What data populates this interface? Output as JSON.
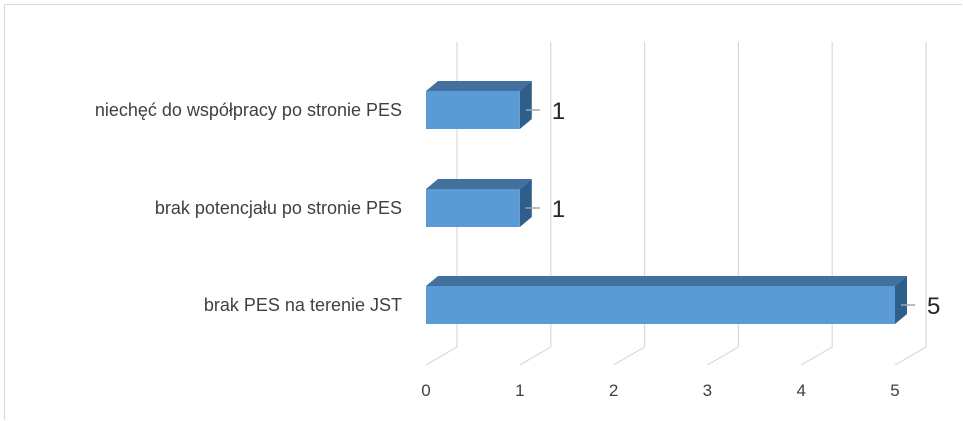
{
  "chart_data": {
    "type": "bar",
    "orientation": "horizontal",
    "style": "3d",
    "categories": [
      "niechęć do współpracy po stronie PES",
      "brak potencjału po stronie PES",
      "brak PES na terenie JST"
    ],
    "values": [
      1,
      1,
      5
    ],
    "data_labels": [
      "1",
      "1",
      "5"
    ],
    "xlim": [
      0,
      5
    ],
    "x_ticks": [
      "0",
      "1",
      "2",
      "3",
      "4",
      "5"
    ],
    "grid": true,
    "legend": "none",
    "colors": {
      "bar_front": "#5b9bd5",
      "bar_top": "#41719c",
      "bar_side": "#2e5f8a",
      "grid": "#d9d9d9"
    }
  }
}
